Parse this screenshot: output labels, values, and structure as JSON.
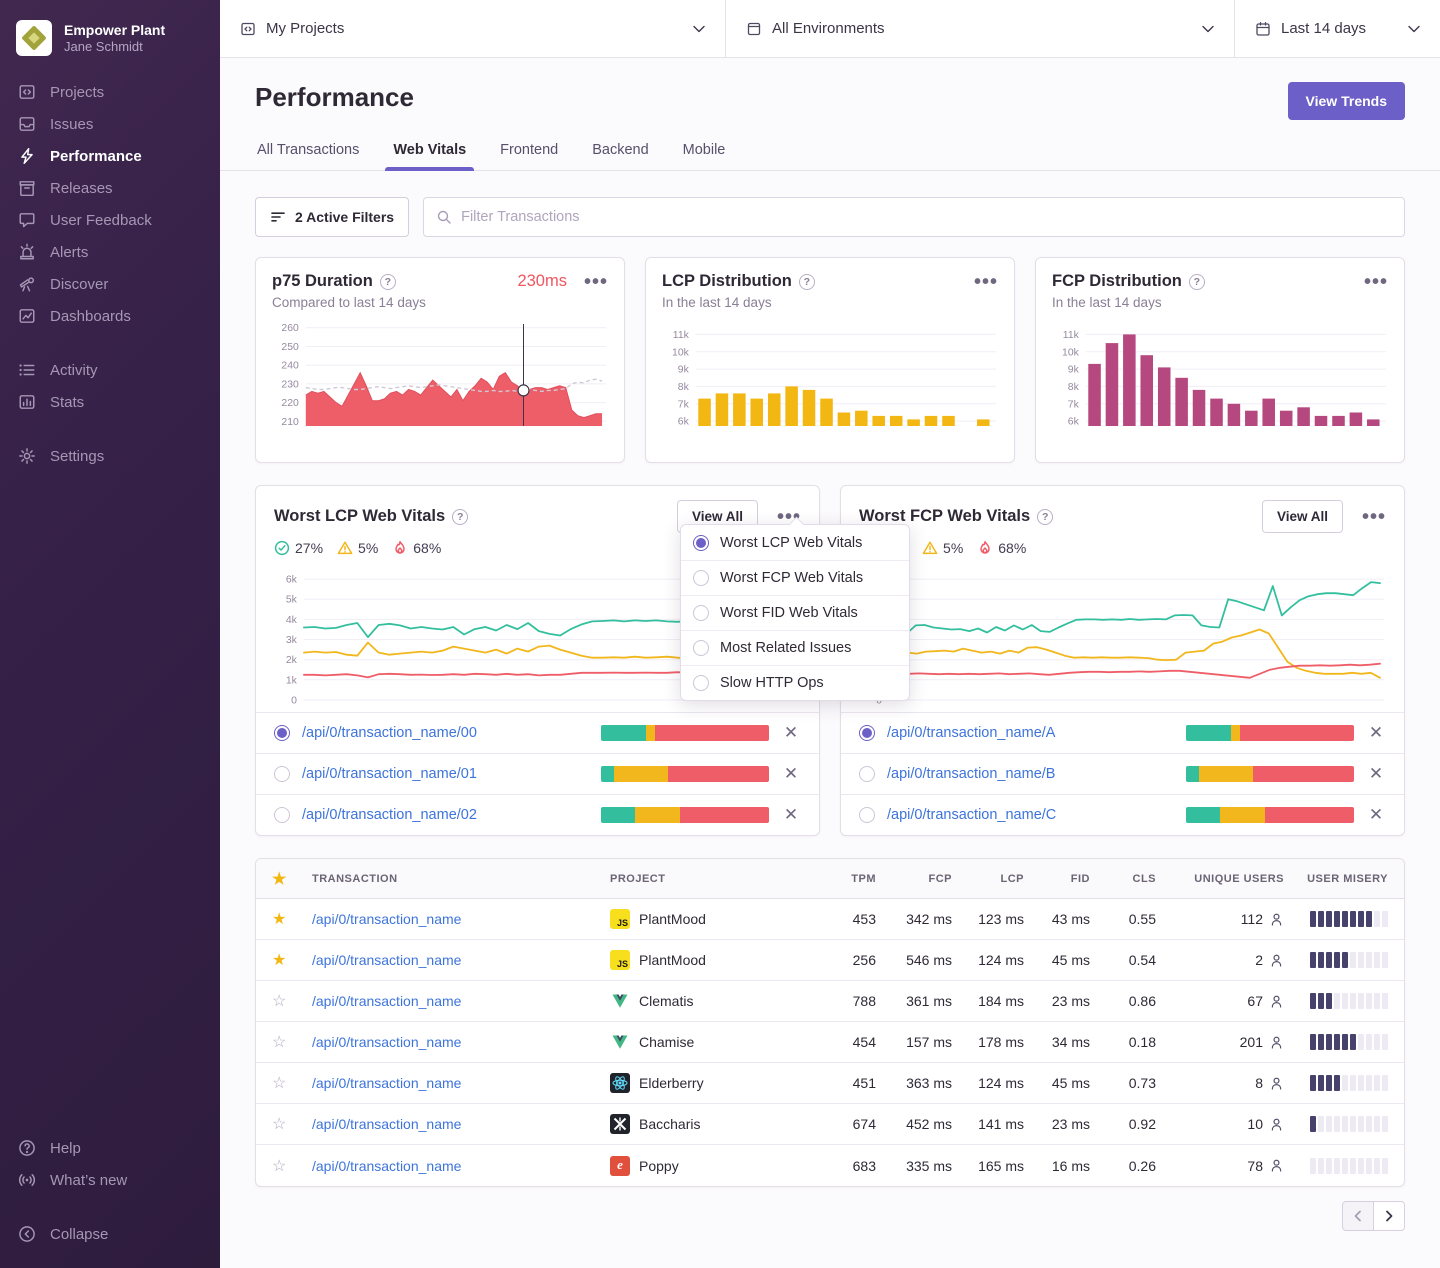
{
  "colors": {
    "accent": "#6C5FC7",
    "good": "#33BF9E",
    "meh": "#F1B71C",
    "poor": "#EF5E68",
    "lcp_bar": "#F2B712",
    "fcp_bar": "#B5487F",
    "p75_area": "#ED5E68",
    "link": "#3D74DB",
    "misery": "#46426B"
  },
  "sidebar": {
    "org": "Empower Plant",
    "user": "Jane Schmidt",
    "items": [
      {
        "label": "Projects"
      },
      {
        "label": "Issues"
      },
      {
        "label": "Performance",
        "active": true
      },
      {
        "label": "Releases"
      },
      {
        "label": "User Feedback"
      },
      {
        "label": "Alerts"
      },
      {
        "label": "Discover"
      },
      {
        "label": "Dashboards"
      }
    ],
    "secondary": [
      {
        "label": "Activity"
      },
      {
        "label": "Stats"
      }
    ],
    "settings": "Settings",
    "footer": [
      {
        "label": "Help"
      },
      {
        "label": "What’s new"
      }
    ],
    "collapse": "Collapse"
  },
  "topbar": {
    "project": "My Projects",
    "environment": "All Environments",
    "daterange": "Last 14 days"
  },
  "header": {
    "title": "Performance",
    "view_trends": "View Trends",
    "tabs": [
      {
        "label": "All Transactions"
      },
      {
        "label": "Web Vitals",
        "active": true
      },
      {
        "label": "Frontend"
      },
      {
        "label": "Backend"
      },
      {
        "label": "Mobile"
      }
    ]
  },
  "filters": {
    "active_filters": "2 Active Filters",
    "search_placeholder": "Filter Transactions"
  },
  "cards": {
    "p75": {
      "title": "p75 Duration",
      "value": "230ms",
      "subtitle": "Compared to last 14 days"
    },
    "lcp": {
      "title": "LCP Distribution",
      "subtitle": "In the last 14 days"
    },
    "fcp": {
      "title": "FCP Distribution",
      "subtitle": "In the last 14 days"
    }
  },
  "vitals": {
    "menu": {
      "items": [
        {
          "label": "Worst LCP Web Vitals",
          "selected": true
        },
        {
          "label": "Worst FCP Web Vitals",
          "selected": false
        },
        {
          "label": "Worst FID Web Vitals",
          "selected": false
        },
        {
          "label": "Most Related Issues",
          "selected": false
        },
        {
          "label": "Slow HTTP Ops",
          "selected": false
        }
      ]
    },
    "left": {
      "title": "Worst LCP Web Vitals",
      "view_all": "View All",
      "badges": [
        {
          "kind": "good",
          "value": "27%"
        },
        {
          "kind": "meh",
          "value": "5%"
        },
        {
          "kind": "poor",
          "value": "68%"
        }
      ],
      "rows": [
        {
          "path": "/api/0/transaction_name/00",
          "selected": true,
          "bar": [
            27,
            5,
            68
          ]
        },
        {
          "path": "/api/0/transaction_name/01",
          "selected": false,
          "bar": [
            8,
            32,
            60
          ]
        },
        {
          "path": "/api/0/transaction_name/02",
          "selected": false,
          "bar": [
            20,
            27,
            53
          ]
        }
      ]
    },
    "right": {
      "title": "Worst FCP Web Vitals",
      "view_all": "View All",
      "badges": [
        {
          "kind": "good",
          "value": "27%"
        },
        {
          "kind": "meh",
          "value": "5%"
        },
        {
          "kind": "poor",
          "value": "68%"
        }
      ],
      "rows": [
        {
          "path": "/api/0/transaction_name/A",
          "selected": true,
          "bar": [
            27,
            5,
            68
          ]
        },
        {
          "path": "/api/0/transaction_name/B",
          "selected": false,
          "bar": [
            8,
            32,
            60
          ]
        },
        {
          "path": "/api/0/transaction_name/C",
          "selected": false,
          "bar": [
            20,
            27,
            53
          ]
        }
      ]
    }
  },
  "table": {
    "headers": [
      "TRANSACTION",
      "PROJECT",
      "TPM",
      "FCP",
      "LCP",
      "FID",
      "CLS",
      "UNIQUE USERS",
      "USER MISERY"
    ],
    "rows": [
      {
        "starred": true,
        "tx": "/api/0/transaction_name",
        "project": "PlantMood",
        "icon": "js",
        "tpm": "453",
        "fcp": "342 ms",
        "lcp": "123 ms",
        "fid": "43 ms",
        "cls": "0.55",
        "users": "112",
        "misery": 8
      },
      {
        "starred": true,
        "tx": "/api/0/transaction_name",
        "project": "PlantMood",
        "icon": "js",
        "tpm": "256",
        "fcp": "546 ms",
        "lcp": "124 ms",
        "fid": "45 ms",
        "cls": "0.54",
        "users": "2",
        "misery": 5
      },
      {
        "starred": false,
        "tx": "/api/0/transaction_name",
        "project": "Clematis",
        "icon": "vue",
        "tpm": "788",
        "fcp": "361 ms",
        "lcp": "184 ms",
        "fid": "23 ms",
        "cls": "0.86",
        "users": "67",
        "misery": 3
      },
      {
        "starred": false,
        "tx": "/api/0/transaction_name",
        "project": "Chamise",
        "icon": "vue",
        "tpm": "454",
        "fcp": "157 ms",
        "lcp": "178 ms",
        "fid": "34 ms",
        "cls": "0.18",
        "users": "201",
        "misery": 6
      },
      {
        "starred": false,
        "tx": "/api/0/transaction_name",
        "project": "Elderberry",
        "icon": "react",
        "tpm": "451",
        "fcp": "363 ms",
        "lcp": "124 ms",
        "fid": "45 ms",
        "cls": "0.73",
        "users": "8",
        "misery": 4
      },
      {
        "starred": false,
        "tx": "/api/0/transaction_name",
        "project": "Baccharis",
        "icon": "dark",
        "tpm": "674",
        "fcp": "452 ms",
        "lcp": "141 ms",
        "fid": "23 ms",
        "cls": "0.92",
        "users": "10",
        "misery": 1
      },
      {
        "starred": false,
        "tx": "/api/0/transaction_name",
        "project": "Poppy",
        "icon": "ember",
        "tpm": "683",
        "fcp": "335 ms",
        "lcp": "165 ms",
        "fid": "16 ms",
        "cls": "0.26",
        "users": "78",
        "misery": 0
      }
    ]
  },
  "chart_data": [
    {
      "id": "p75",
      "type": "area",
      "title": "p75 Duration (ms)",
      "ylim": [
        207.5,
        262
      ],
      "color": "#ED5E68",
      "yticks": [
        [
          260,
          "260"
        ],
        [
          250,
          "250"
        ],
        [
          240,
          "240"
        ],
        [
          230,
          "230"
        ],
        [
          220,
          "220"
        ],
        [
          210,
          "210"
        ]
      ],
      "values": [
        224,
        226,
        225,
        226,
        223,
        220,
        218,
        224,
        230,
        236,
        229,
        221,
        221,
        222,
        225,
        226,
        224,
        227,
        226,
        224,
        228,
        232,
        229,
        226,
        223,
        227,
        221,
        226,
        229,
        233,
        231,
        227,
        234,
        236,
        231,
        229,
        226,
        227,
        228,
        228,
        227,
        228,
        229,
        228,
        216,
        213,
        212,
        213,
        214,
        214
      ],
      "trend": [
        228,
        227.5,
        227,
        227,
        227.5,
        228,
        228,
        227.5,
        227,
        227,
        227.5,
        228,
        228.5,
        228,
        227.5,
        228,
        228.5,
        229,
        228.5,
        228,
        228.5,
        229,
        229.5,
        229,
        228.5,
        228,
        227.5,
        227,
        226.5,
        226,
        226,
        226.5,
        226,
        226,
        226.5,
        226,
        226.5,
        227,
        226.5,
        226,
        226.5,
        226.5,
        227,
        227.5,
        230,
        231,
        230.5,
        232,
        232.5,
        231.5
      ],
      "marker_x": 0.735
    },
    {
      "id": "lcp_dist",
      "type": "bar",
      "title": "LCP Distribution",
      "color": "#F2B712",
      "ylim": [
        5.72,
        11.6
      ],
      "yticks": [
        [
          11,
          "11k"
        ],
        [
          10,
          "10k"
        ],
        [
          9,
          "9k"
        ],
        [
          8,
          "8k"
        ],
        [
          7,
          "7k"
        ],
        [
          6,
          "6k"
        ]
      ],
      "values": [
        7.3,
        7.6,
        7.6,
        7.3,
        7.6,
        8.0,
        7.8,
        7.3,
        6.5,
        6.6,
        6.3,
        6.3,
        6.1,
        6.3,
        6.3,
        null,
        6.1
      ]
    },
    {
      "id": "fcp_dist",
      "type": "bar",
      "title": "FCP Distribution",
      "color": "#B5487F",
      "ylim": [
        5.72,
        11.6
      ],
      "yticks": [
        [
          11,
          "11k"
        ],
        [
          10,
          "10k"
        ],
        [
          9,
          "9k"
        ],
        [
          8,
          "8k"
        ],
        [
          7,
          "7k"
        ],
        [
          6,
          "6k"
        ]
      ],
      "values": [
        9.3,
        10.5,
        11.0,
        9.8,
        9.1,
        8.5,
        7.8,
        7.3,
        7.0,
        6.6,
        7.3,
        6.6,
        6.8,
        6.3,
        6.3,
        6.5,
        6.1
      ]
    },
    {
      "id": "lcp_lines",
      "type": "line",
      "title": "Worst LCP Web Vitals",
      "ylim": [
        0,
        6.55
      ],
      "yticks": [
        [
          6,
          "6k"
        ],
        [
          5,
          "5k"
        ],
        [
          4,
          "4k"
        ],
        [
          3,
          "3k"
        ],
        [
          2,
          "2k"
        ],
        [
          1,
          "1k"
        ],
        [
          0,
          "0"
        ]
      ],
      "series": [
        {
          "name": "good",
          "color": "#33BF9E",
          "values": [
            3.6,
            3.62,
            3.55,
            3.58,
            3.72,
            3.82,
            3.12,
            3.72,
            3.78,
            3.7,
            3.55,
            3.62,
            3.55,
            3.5,
            3.62,
            3.25,
            3.52,
            3.62,
            3.45,
            3.72,
            3.52,
            3.82,
            3.42,
            3.28,
            3.2,
            3.52,
            3.75,
            3.9,
            3.92,
            3.95,
            3.9,
            3.95,
            3.92,
            3.95,
            3.9,
            3.88,
            3.92,
            4.1,
            4.08,
            4.12,
            3.55,
            3.45,
            3.42,
            5.2,
            5.05,
            4.85,
            4.65
          ]
        },
        {
          "name": "meh",
          "color": "#F1B71C",
          "values": [
            2.35,
            2.4,
            2.35,
            2.38,
            2.25,
            2.2,
            2.85,
            2.35,
            2.25,
            2.3,
            2.35,
            2.4,
            2.35,
            2.45,
            2.65,
            2.55,
            2.45,
            2.35,
            2.5,
            2.3,
            2.55,
            2.4,
            2.65,
            2.7,
            2.5,
            2.35,
            2.2,
            2.1,
            2.1,
            2.12,
            2.1,
            2.15,
            2.1,
            2.12,
            2.15,
            2.1,
            2.05,
            1.95,
            1.95,
            2.0,
            2.4,
            2.45,
            2.5,
            2.9,
            3.05,
            3.2,
            3.45
          ]
        },
        {
          "name": "poor",
          "color": "#EF5E68",
          "values": [
            1.25,
            1.25,
            1.22,
            1.25,
            1.28,
            1.22,
            1.12,
            1.28,
            1.3,
            1.28,
            1.25,
            1.26,
            1.24,
            1.25,
            1.28,
            1.25,
            1.3,
            1.28,
            1.25,
            1.3,
            1.25,
            1.28,
            1.22,
            1.25,
            1.25,
            1.3,
            1.35,
            1.35,
            1.35,
            1.36,
            1.35,
            1.35,
            1.36,
            1.35,
            1.35,
            1.38,
            1.35,
            1.4,
            1.42,
            1.4,
            1.3,
            1.28,
            1.25,
            1.15,
            1.1,
            1.05,
            1.0
          ]
        }
      ]
    },
    {
      "id": "fcp_lines",
      "type": "line",
      "title": "Worst FCP Web Vitals",
      "ylim": [
        0,
        6.55
      ],
      "yticks": [
        [
          6,
          "6k"
        ],
        [
          5,
          "5k"
        ],
        [
          4,
          "4k"
        ],
        [
          3,
          "3k"
        ],
        [
          2,
          "2k"
        ],
        [
          1,
          "1k"
        ],
        [
          0,
          "0"
        ]
      ],
      "series": [
        {
          "name": "good",
          "color": "#33BF9E",
          "values": [
            3.7,
            3.45,
            3.3,
            3.7,
            3.72,
            3.6,
            3.55,
            3.5,
            3.52,
            3.42,
            3.55,
            3.35,
            3.62,
            3.45,
            3.7,
            3.5,
            3.72,
            3.42,
            3.38,
            3.6,
            3.8,
            3.98,
            4.0,
            4.0,
            3.98,
            4.0,
            3.98,
            4.02,
            3.98,
            4.0,
            4.02,
            4.0,
            4.2,
            4.22,
            4.2,
            3.7,
            3.62,
            3.6,
            5.0,
            4.9,
            4.75,
            4.6,
            4.45,
            5.65,
            4.2,
            4.6,
            4.95,
            5.15,
            5.25,
            5.3,
            5.3,
            5.25,
            5.2,
            5.55,
            5.85,
            5.8
          ]
        },
        {
          "name": "meh",
          "color": "#F1B71C",
          "values": [
            2.4,
            2.65,
            2.35,
            2.3,
            2.4,
            2.42,
            2.45,
            2.4,
            2.55,
            2.45,
            2.35,
            2.4,
            2.3,
            2.45,
            2.35,
            2.6,
            2.62,
            2.5,
            2.35,
            2.2,
            2.1,
            2.12,
            2.1,
            2.12,
            2.1,
            2.1,
            2.12,
            2.1,
            2.08,
            2.0,
            1.98,
            2.0,
            2.35,
            2.4,
            2.45,
            2.8,
            2.9,
            3.1,
            3.2,
            3.35,
            3.5,
            3.3,
            2.6,
            1.9,
            1.6,
            1.45,
            1.35,
            1.3,
            1.3,
            1.3,
            1.35,
            1.3,
            1.35,
            1.1
          ]
        },
        {
          "name": "poor",
          "color": "#EF5E68",
          "values": [
            1.3,
            1.22,
            1.3,
            1.32,
            1.3,
            1.28,
            1.3,
            1.28,
            1.3,
            1.28,
            1.3,
            1.32,
            1.28,
            1.3,
            1.32,
            1.28,
            1.25,
            1.3,
            1.35,
            1.38,
            1.4,
            1.4,
            1.38,
            1.4,
            1.4,
            1.42,
            1.4,
            1.42,
            1.45,
            1.45,
            1.4,
            1.35,
            1.3,
            1.25,
            1.2,
            1.15,
            1.1,
            1.3,
            1.5,
            1.6,
            1.65,
            1.7,
            1.7,
            1.72,
            1.7,
            1.72,
            1.75,
            1.72,
            1.75,
            1.8
          ]
        }
      ]
    }
  ],
  "pager": {
    "prev_disabled": true
  }
}
